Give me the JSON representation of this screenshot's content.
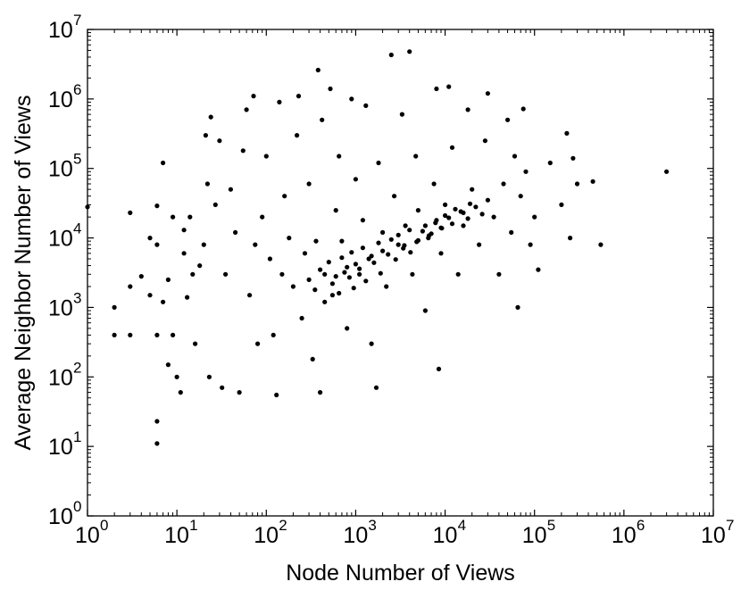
{
  "chart_data": {
    "type": "scatter",
    "title": "",
    "xlabel": "Node Number of Views",
    "ylabel": "Average Neighbor Number of Views",
    "x_scale": "log",
    "y_scale": "log",
    "xlim": [
      1,
      10000000
    ],
    "ylim": [
      1,
      10000000
    ],
    "grid": false,
    "legend": "none",
    "colors": {
      "marker": "#000000",
      "axes": "#000000",
      "background": "#ffffff"
    },
    "x_ticks": [
      {
        "base": "10",
        "exp": "0",
        "value": 1
      },
      {
        "base": "10",
        "exp": "1",
        "value": 10
      },
      {
        "base": "10",
        "exp": "2",
        "value": 100
      },
      {
        "base": "10",
        "exp": "3",
        "value": 1000
      },
      {
        "base": "10",
        "exp": "4",
        "value": 10000
      },
      {
        "base": "10",
        "exp": "5",
        "value": 100000
      },
      {
        "base": "10",
        "exp": "6",
        "value": 1000000
      },
      {
        "base": "10",
        "exp": "7",
        "value": 10000000
      }
    ],
    "y_ticks": [
      {
        "base": "10",
        "exp": "0",
        "value": 1
      },
      {
        "base": "10",
        "exp": "1",
        "value": 10
      },
      {
        "base": "10",
        "exp": "2",
        "value": 100
      },
      {
        "base": "10",
        "exp": "3",
        "value": 1000
      },
      {
        "base": "10",
        "exp": "4",
        "value": 10000
      },
      {
        "base": "10",
        "exp": "5",
        "value": 100000
      },
      {
        "base": "10",
        "exp": "6",
        "value": 1000000
      },
      {
        "base": "10",
        "exp": "7",
        "value": 10000000
      }
    ],
    "series": [
      {
        "points": [
          [
            1,
            28000
          ],
          [
            2,
            1000
          ],
          [
            2,
            400
          ],
          [
            3,
            400
          ],
          [
            3,
            23000
          ],
          [
            3,
            2000
          ],
          [
            4,
            2800
          ],
          [
            5,
            10000
          ],
          [
            5,
            1500
          ],
          [
            6,
            23
          ],
          [
            6,
            11
          ],
          [
            6,
            8000
          ],
          [
            6,
            400
          ],
          [
            6,
            29000
          ],
          [
            7,
            120000
          ],
          [
            7,
            1200
          ],
          [
            8,
            150
          ],
          [
            8,
            2500
          ],
          [
            9,
            400
          ],
          [
            9,
            20000
          ],
          [
            10,
            100
          ],
          [
            11,
            60
          ],
          [
            12,
            13000
          ],
          [
            12,
            6000
          ],
          [
            13,
            1400
          ],
          [
            14,
            20000
          ],
          [
            15,
            3000
          ],
          [
            16,
            300
          ],
          [
            18,
            4000
          ],
          [
            20,
            8000
          ],
          [
            21,
            300000
          ],
          [
            22,
            60000
          ],
          [
            23,
            100
          ],
          [
            24,
            550000
          ],
          [
            27,
            30000
          ],
          [
            30,
            250000
          ],
          [
            32,
            70
          ],
          [
            35,
            3000
          ],
          [
            40,
            50000
          ],
          [
            45,
            12000
          ],
          [
            50,
            60
          ],
          [
            55,
            180000
          ],
          [
            60,
            700000
          ],
          [
            65,
            1500
          ],
          [
            72,
            1100000
          ],
          [
            75,
            8000
          ],
          [
            80,
            300
          ],
          [
            90,
            20000
          ],
          [
            100,
            150000
          ],
          [
            110,
            5000
          ],
          [
            120,
            400
          ],
          [
            130,
            55
          ],
          [
            140,
            900000
          ],
          [
            150,
            3000
          ],
          [
            160,
            40000
          ],
          [
            180,
            10000
          ],
          [
            200,
            2000
          ],
          [
            220,
            300000
          ],
          [
            230,
            1100000
          ],
          [
            250,
            700
          ],
          [
            270,
            6000
          ],
          [
            300,
            60000
          ],
          [
            330,
            180
          ],
          [
            360,
            9000
          ],
          [
            380,
            2600000
          ],
          [
            400,
            60
          ],
          [
            420,
            500000
          ],
          [
            450,
            3000
          ],
          [
            520,
            1400000
          ],
          [
            550,
            1500
          ],
          [
            600,
            25000
          ],
          [
            650,
            150000
          ],
          [
            700,
            9000
          ],
          [
            800,
            500
          ],
          [
            900,
            1000000
          ],
          [
            1000,
            70000
          ],
          [
            1100,
            3000
          ],
          [
            1200,
            18000
          ],
          [
            1300,
            800000
          ],
          [
            1400,
            5000
          ],
          [
            1500,
            300
          ],
          [
            1700,
            70
          ],
          [
            1800,
            120000
          ],
          [
            2000,
            12000
          ],
          [
            2200,
            2000
          ],
          [
            2500,
            4300000
          ],
          [
            2700,
            40000
          ],
          [
            3000,
            8000
          ],
          [
            3300,
            600000
          ],
          [
            3600,
            15000
          ],
          [
            4000,
            4800000
          ],
          [
            4300,
            3000
          ],
          [
            4700,
            150000
          ],
          [
            5000,
            25000
          ],
          [
            6000,
            900
          ],
          [
            6500,
            10000
          ],
          [
            7500,
            60000
          ],
          [
            8000,
            1400000
          ],
          [
            8500,
            130
          ],
          [
            9000,
            6000
          ],
          [
            10000,
            30000
          ],
          [
            11000,
            1500000
          ],
          [
            12000,
            200000
          ],
          [
            14000,
            3000
          ],
          [
            16000,
            15000
          ],
          [
            18000,
            700000
          ],
          [
            20000,
            50000
          ],
          [
            24000,
            8000
          ],
          [
            28000,
            250000
          ],
          [
            30000,
            1200000
          ],
          [
            35000,
            20000
          ],
          [
            40000,
            3000
          ],
          [
            45000,
            60000
          ],
          [
            50000,
            500000
          ],
          [
            55000,
            12000
          ],
          [
            60000,
            150000
          ],
          [
            65000,
            1000
          ],
          [
            70000,
            40000
          ],
          [
            75000,
            720000
          ],
          [
            80000,
            90000
          ],
          [
            90000,
            8000
          ],
          [
            100000,
            20000
          ],
          [
            110000,
            3500
          ],
          [
            150000,
            120000
          ],
          [
            200000,
            30000
          ],
          [
            230000,
            320000
          ],
          [
            250000,
            10000
          ],
          [
            270000,
            140000
          ],
          [
            300000,
            60000
          ],
          [
            450000,
            65000
          ],
          [
            550000,
            8000
          ],
          [
            3000000,
            90000
          ],
          [
            400,
            3500
          ],
          [
            500,
            4500
          ],
          [
            600,
            2800
          ],
          [
            700,
            5200
          ],
          [
            800,
            3800
          ],
          [
            900,
            6200
          ],
          [
            1000,
            4200
          ],
          [
            1200,
            7200
          ],
          [
            1500,
            5500
          ],
          [
            1800,
            8500
          ],
          [
            2000,
            6500
          ],
          [
            2500,
            9500
          ],
          [
            3000,
            11000
          ],
          [
            3500,
            7800
          ],
          [
            4000,
            13000
          ],
          [
            5000,
            9200
          ],
          [
            6000,
            15000
          ],
          [
            7000,
            11500
          ],
          [
            8000,
            18000
          ],
          [
            9000,
            14000
          ],
          [
            10000,
            21000
          ],
          [
            12000,
            16000
          ],
          [
            15000,
            24000
          ],
          [
            18000,
            19000
          ],
          [
            22000,
            28000
          ],
          [
            26000,
            22000
          ],
          [
            30000,
            35000
          ],
          [
            300,
            2500
          ],
          [
            350,
            1800
          ],
          [
            450,
            1200
          ],
          [
            550,
            2200
          ],
          [
            650,
            1600
          ],
          [
            750,
            3200
          ],
          [
            850,
            2700
          ],
          [
            950,
            1900
          ],
          [
            1100,
            3600
          ],
          [
            1300,
            2400
          ],
          [
            1600,
            4400
          ],
          [
            1900,
            3100
          ],
          [
            2300,
            5800
          ],
          [
            2800,
            4900
          ],
          [
            3400,
            7100
          ],
          [
            4100,
            6200
          ],
          [
            4800,
            8800
          ],
          [
            5600,
            12500
          ],
          [
            6600,
            10800
          ],
          [
            7800,
            16500
          ],
          [
            9200,
            13800
          ],
          [
            11000,
            19500
          ],
          [
            13000,
            26000
          ],
          [
            16000,
            23000
          ],
          [
            19000,
            31000
          ]
        ]
      }
    ]
  }
}
